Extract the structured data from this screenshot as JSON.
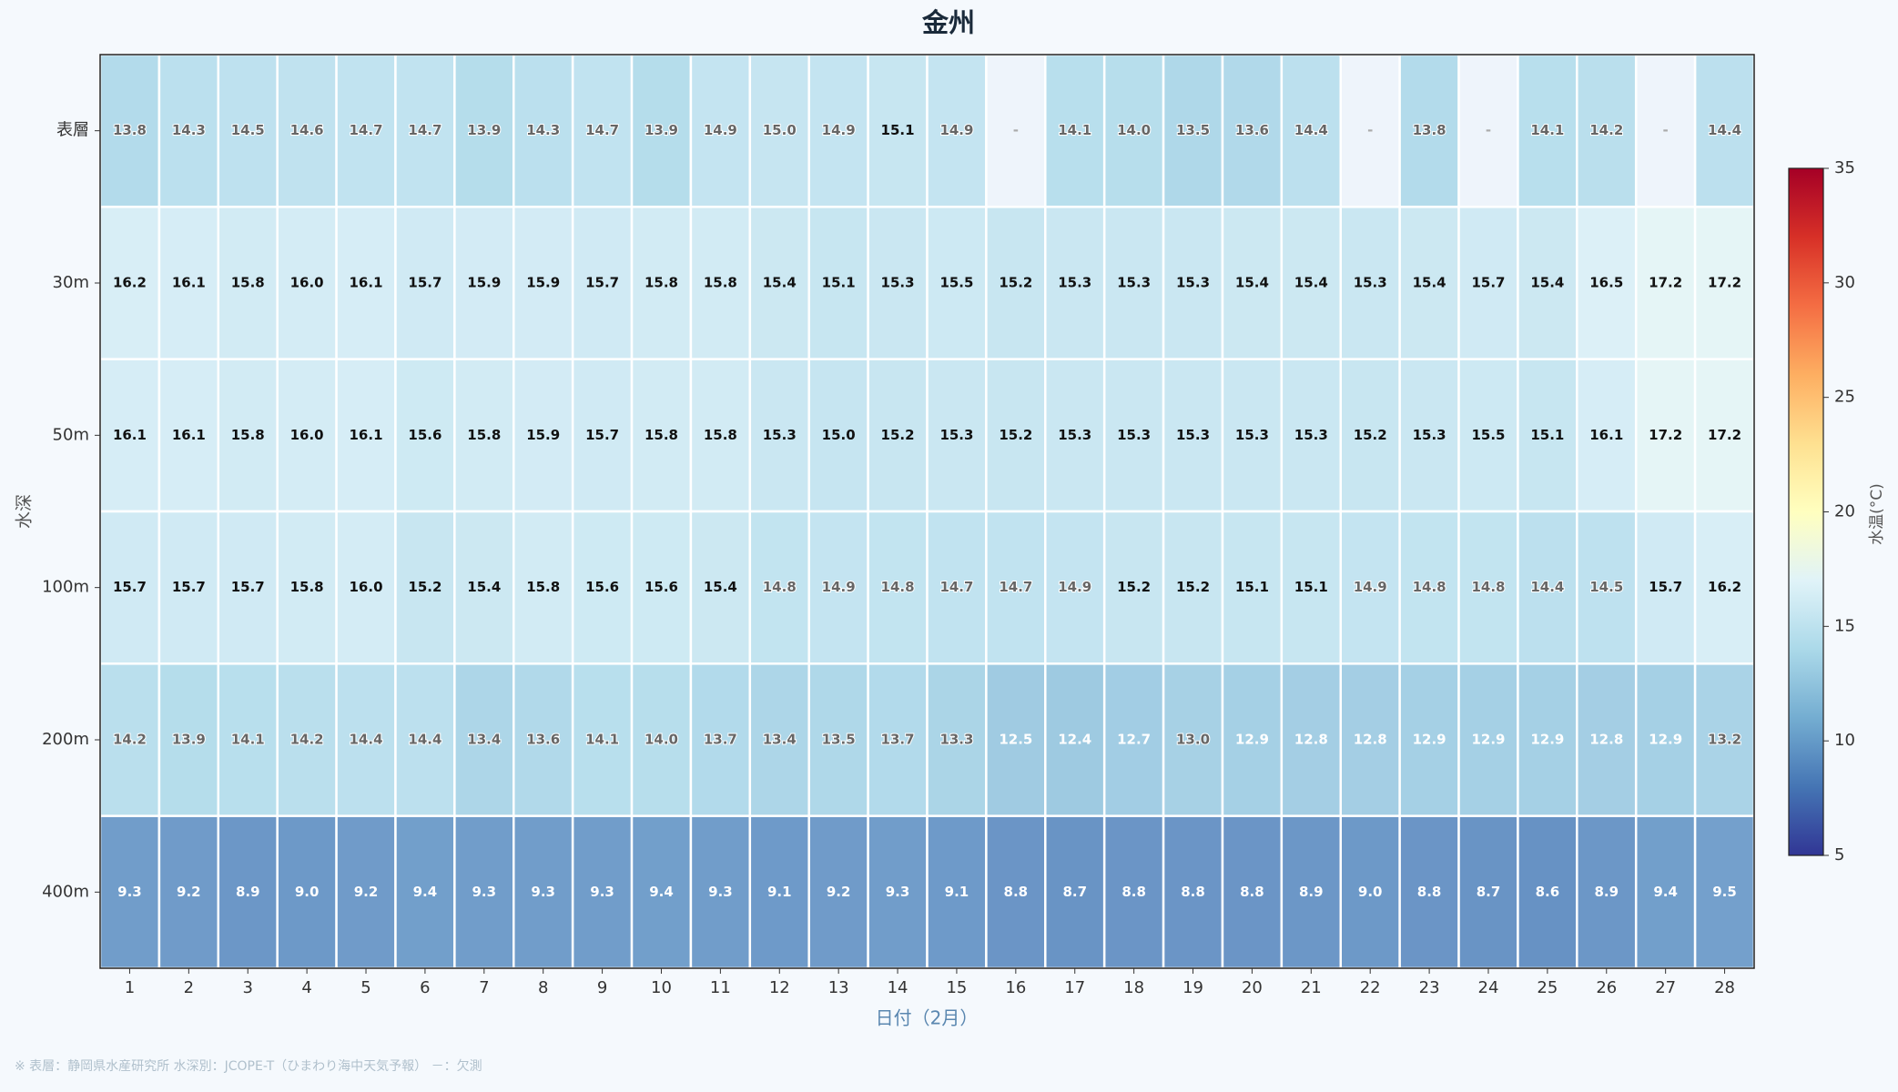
{
  "chart_data": {
    "type": "heatmap",
    "title": "金州",
    "x_label": "日付（2月）",
    "y_label": "水深",
    "x_categories": [
      "1",
      "2",
      "3",
      "4",
      "5",
      "6",
      "7",
      "8",
      "9",
      "10",
      "11",
      "12",
      "13",
      "14",
      "15",
      "16",
      "17",
      "18",
      "19",
      "20",
      "21",
      "22",
      "23",
      "24",
      "25",
      "26",
      "27",
      "28"
    ],
    "y_categories": [
      "表層",
      "30m",
      "50m",
      "100m",
      "200m",
      "400m"
    ],
    "values": [
      [
        13.8,
        14.3,
        14.5,
        14.6,
        14.7,
        14.7,
        13.9,
        14.3,
        14.7,
        13.9,
        14.9,
        15.0,
        14.9,
        15.1,
        14.9,
        null,
        14.1,
        14.0,
        13.5,
        13.6,
        14.4,
        null,
        13.8,
        null,
        14.1,
        14.2,
        null,
        14.4
      ],
      [
        16.2,
        16.1,
        15.8,
        16.0,
        16.1,
        15.7,
        15.9,
        15.9,
        15.7,
        15.8,
        15.8,
        15.4,
        15.1,
        15.3,
        15.5,
        15.2,
        15.3,
        15.3,
        15.3,
        15.4,
        15.4,
        15.3,
        15.4,
        15.7,
        15.4,
        16.5,
        17.2,
        17.2
      ],
      [
        16.1,
        16.1,
        15.8,
        16.0,
        16.1,
        15.6,
        15.8,
        15.9,
        15.7,
        15.8,
        15.8,
        15.3,
        15.0,
        15.2,
        15.3,
        15.2,
        15.3,
        15.3,
        15.3,
        15.3,
        15.3,
        15.2,
        15.3,
        15.5,
        15.1,
        16.1,
        17.2,
        17.2
      ],
      [
        15.7,
        15.7,
        15.7,
        15.8,
        16.0,
        15.2,
        15.4,
        15.8,
        15.6,
        15.6,
        15.4,
        14.8,
        14.9,
        14.8,
        14.7,
        14.7,
        14.9,
        15.2,
        15.2,
        15.1,
        15.1,
        14.9,
        14.8,
        14.8,
        14.4,
        14.5,
        15.7,
        16.2
      ],
      [
        14.2,
        13.9,
        14.1,
        14.2,
        14.4,
        14.4,
        13.4,
        13.6,
        14.1,
        14.0,
        13.7,
        13.4,
        13.5,
        13.7,
        13.3,
        12.5,
        12.4,
        12.7,
        13.0,
        12.9,
        12.8,
        12.8,
        12.9,
        12.9,
        12.9,
        12.8,
        12.9,
        13.2
      ],
      [
        9.3,
        9.2,
        8.9,
        9.0,
        9.2,
        9.4,
        9.3,
        9.3,
        9.3,
        9.4,
        9.3,
        9.1,
        9.2,
        9.3,
        9.1,
        8.8,
        8.7,
        8.8,
        8.8,
        8.8,
        8.9,
        9.0,
        8.8,
        8.7,
        8.6,
        8.9,
        9.4,
        9.5
      ]
    ],
    "value_labels": [
      [
        "13.8",
        "14.3",
        "14.5",
        "14.6",
        "14.7",
        "14.7",
        "13.9",
        "14.3",
        "14.7",
        "13.9",
        "14.9",
        "15.0",
        "14.9",
        "15.1",
        "14.9",
        "-",
        "14.1",
        "14.0",
        "13.5",
        "13.6",
        "14.4",
        "-",
        "13.8",
        "-",
        "14.1",
        "14.2",
        "-",
        "14.4"
      ],
      [
        "16.2",
        "16.1",
        "15.8",
        "16.0",
        "16.1",
        "15.7",
        "15.9",
        "15.9",
        "15.7",
        "15.8",
        "15.8",
        "15.4",
        "15.1",
        "15.3",
        "15.5",
        "15.2",
        "15.3",
        "15.3",
        "15.3",
        "15.4",
        "15.4",
        "15.3",
        "15.4",
        "15.7",
        "15.4",
        "16.5",
        "17.2",
        "17.2"
      ],
      [
        "16.1",
        "16.1",
        "15.8",
        "16.0",
        "16.1",
        "15.6",
        "15.8",
        "15.9",
        "15.7",
        "15.8",
        "15.8",
        "15.3",
        "15.0",
        "15.2",
        "15.3",
        "15.2",
        "15.3",
        "15.3",
        "15.3",
        "15.3",
        "15.3",
        "15.2",
        "15.3",
        "15.5",
        "15.1",
        "16.1",
        "17.2",
        "17.2"
      ],
      [
        "15.7",
        "15.7",
        "15.7",
        "15.8",
        "16.0",
        "15.2",
        "15.4",
        "15.8",
        "15.6",
        "15.6",
        "15.4",
        "14.8",
        "14.9",
        "14.8",
        "14.7",
        "14.7",
        "14.9",
        "15.2",
        "15.2",
        "15.1",
        "15.1",
        "14.9",
        "14.8",
        "14.8",
        "14.4",
        "14.5",
        "15.7",
        "16.2"
      ],
      [
        "14.2",
        "13.9",
        "14.1",
        "14.2",
        "14.4",
        "14.4",
        "13.4",
        "13.6",
        "14.1",
        "14.0",
        "13.7",
        "13.4",
        "13.5",
        "13.7",
        "13.3",
        "12.5",
        "12.4",
        "12.7",
        "13.0",
        "12.9",
        "12.8",
        "12.8",
        "12.9",
        "12.9",
        "12.9",
        "12.8",
        "12.9",
        "13.2"
      ],
      [
        "9.3",
        "9.2",
        "8.9",
        "9.0",
        "9.2",
        "9.4",
        "9.3",
        "9.3",
        "9.3",
        "9.4",
        "9.3",
        "9.1",
        "9.2",
        "9.3",
        "9.1",
        "8.8",
        "8.7",
        "8.8",
        "8.8",
        "8.8",
        "8.9",
        "9.0",
        "8.8",
        "8.7",
        "8.6",
        "8.9",
        "9.4",
        "9.5"
      ]
    ],
    "colormap": "RdYlBu_r",
    "clim": [
      5,
      35
    ],
    "cticks": [
      5,
      10,
      15,
      20,
      25,
      30,
      35
    ],
    "colorbar_label": "水温(°C)",
    "footnote": "※ 表層：静岡県水産研究所  水深別：JCOPE-T（ひまわり海中天気予報）  －：欠測"
  }
}
